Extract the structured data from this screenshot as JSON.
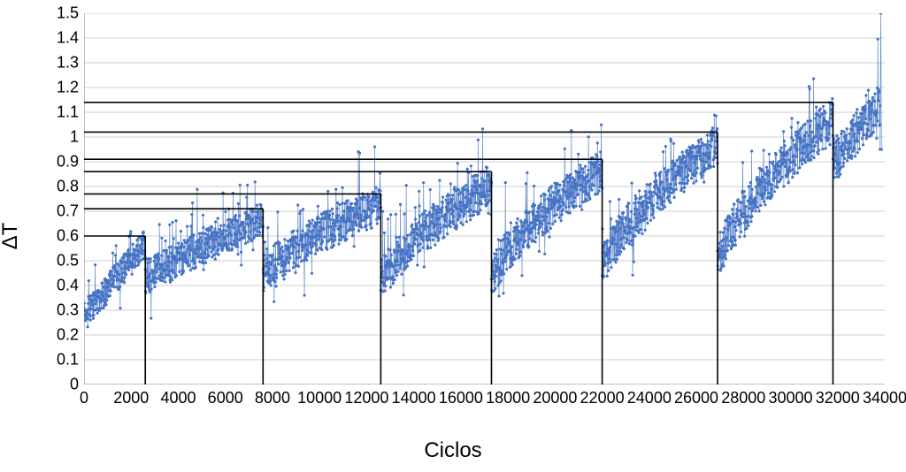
{
  "chart": {
    "type": "scatter-line",
    "x_label": "Ciclos",
    "y_label": "ΔT",
    "xlim": [
      0,
      34000
    ],
    "ylim": [
      0,
      1.5
    ],
    "xtick_step": 2000,
    "ytick_step": 0.1,
    "xtick_labels": [
      "0",
      "2000",
      "4000",
      "6000",
      "8000",
      "10000",
      "12000",
      "14000",
      "16000",
      "18000",
      "20000",
      "22000",
      "24000",
      "26000",
      "28000",
      "30000",
      "32000",
      "34000"
    ],
    "ytick_labels": [
      "0",
      "0.1",
      "0.2",
      "0.3",
      "0.4",
      "0.5",
      "0.6",
      "0.7",
      "0.8",
      "0.9",
      "1",
      "1.1",
      "1.2",
      "1.3",
      "1.4",
      "1.5"
    ],
    "background_color": "#ffffff",
    "grid_color": "#bfbfbf",
    "grid_width": 0.7,
    "axis_color": "#808080",
    "series_color": "#4472c4",
    "marker_size": 1.6,
    "line_width": 0.7,
    "label_fontsize": 24,
    "tick_fontsize": 18,
    "reference_lines": [
      {
        "x": 2600,
        "y": 0.6
      },
      {
        "x": 7600,
        "y": 0.71
      },
      {
        "x": 12600,
        "y": 0.77
      },
      {
        "x": 17300,
        "y": 0.86
      },
      {
        "x": 22000,
        "y": 0.91
      },
      {
        "x": 26900,
        "y": 1.02
      },
      {
        "x": 31800,
        "y": 1.14
      }
    ],
    "reference_line_color": "#000000",
    "reference_line_width": 1.6,
    "segments": [
      {
        "x_start": 0,
        "x_end": 2600,
        "y_start_base": 0.28,
        "y_end_base": 0.56,
        "noise_amp": 0.12,
        "drop_y0": 0.28
      },
      {
        "x_start": 2600,
        "x_end": 7600,
        "y_start_base": 0.45,
        "y_end_base": 0.66,
        "noise_amp": 0.14,
        "drop_y0": 0.43
      },
      {
        "x_start": 7600,
        "x_end": 12600,
        "y_start_base": 0.5,
        "y_end_base": 0.72,
        "noise_amp": 0.16,
        "drop_y0": 0.44
      },
      {
        "x_start": 12600,
        "x_end": 17300,
        "y_start_base": 0.5,
        "y_end_base": 0.8,
        "noise_amp": 0.17,
        "drop_y0": 0.42
      },
      {
        "x_start": 17300,
        "x_end": 22000,
        "y_start_base": 0.54,
        "y_end_base": 0.86,
        "noise_amp": 0.17,
        "drop_y0": 0.43
      },
      {
        "x_start": 22000,
        "x_end": 26900,
        "y_start_base": 0.6,
        "y_end_base": 0.96,
        "noise_amp": 0.17,
        "drop_y0": 0.47
      },
      {
        "x_start": 26900,
        "x_end": 31800,
        "y_start_base": 0.65,
        "y_end_base": 1.06,
        "noise_amp": 0.18,
        "drop_y0": 0.5
      },
      {
        "x_start": 31800,
        "x_end": 33800,
        "y_start_base": 0.9,
        "y_end_base": 1.12,
        "noise_amp": 0.18,
        "drop_y0": 0.9
      }
    ],
    "end_spike": {
      "x": 33800,
      "y_low": 0.95,
      "y_high": 1.5
    },
    "points_per_segment_per_1000x": 85,
    "noise_seed": 1234567
  }
}
